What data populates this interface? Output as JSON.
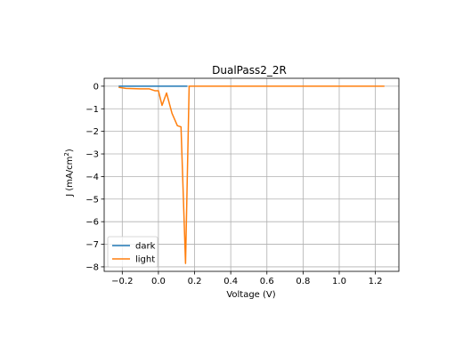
{
  "chart_data": {
    "type": "line",
    "title": "DualPass2_2R",
    "xlabel": "Voltage (V)",
    "ylabel_main": "J (mA/cm",
    "ylabel_sup": "2",
    "ylabel_close": ")",
    "xlim": [
      -0.3,
      1.33
    ],
    "ylim": [
      -8.2,
      0.35
    ],
    "xticks": [
      -0.2,
      0.0,
      0.2,
      0.4,
      0.6,
      0.8,
      1.0,
      1.2
    ],
    "xtick_labels": [
      "−0.2",
      "0.0",
      "0.2",
      "0.4",
      "0.6",
      "0.8",
      "1.0",
      "1.2"
    ],
    "yticks": [
      0,
      -1,
      -2,
      -3,
      -4,
      -5,
      -6,
      -7,
      -8
    ],
    "ytick_labels": [
      "0",
      "−1",
      "−2",
      "−3",
      "−4",
      "−5",
      "−6",
      "−7",
      "−8"
    ],
    "grid": true,
    "legend_position": "lower-left",
    "series": [
      {
        "name": "dark",
        "color": "#1f77b4",
        "x": [
          -0.22,
          0.0,
          0.16
        ],
        "y": [
          0.0,
          0.0,
          0.0
        ]
      },
      {
        "name": "light",
        "color": "#ff7f0e",
        "x": [
          -0.22,
          -0.18,
          -0.1,
          -0.05,
          -0.02,
          0.0,
          0.02,
          0.045,
          0.075,
          0.105,
          0.125,
          0.15,
          0.17,
          0.2,
          0.4,
          0.8,
          1.25
        ],
        "y": [
          -0.05,
          -0.1,
          -0.12,
          -0.12,
          -0.2,
          -0.2,
          -0.85,
          -0.3,
          -1.2,
          -1.75,
          -1.8,
          -7.85,
          0.0,
          0.0,
          0.0,
          0.0,
          0.0
        ]
      }
    ]
  }
}
